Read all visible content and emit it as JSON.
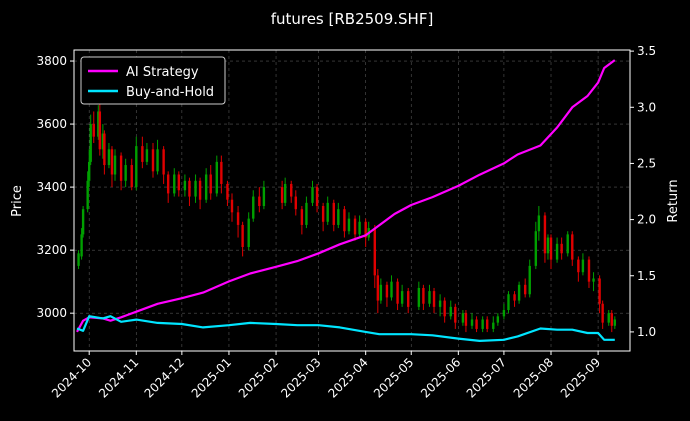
{
  "chart_data": {
    "type": "line",
    "title": "futures [RB2509.SHF]",
    "ylabel": "Price",
    "y2label": "Return",
    "grid": true,
    "legend_position": "top-left",
    "xlim": [
      "2024-09-21",
      "2025-09-22"
    ],
    "ylim": [
      2880,
      3835
    ],
    "y2lim": [
      0.83,
      3.51
    ],
    "x_ticks": [
      "2024-10",
      "2024-11",
      "2024-12",
      "2025-01",
      "2025-02",
      "2025-03",
      "2025-04",
      "2025-05",
      "2025-06",
      "2025-07",
      "2025-08",
      "2025-09"
    ],
    "y_ticks": [
      3000,
      3200,
      3400,
      3600,
      3800
    ],
    "y2_ticks": [
      1.0,
      1.5,
      2.0,
      2.5,
      3.0,
      3.5
    ],
    "y2_tick_labels": [
      "1.0",
      "1.5",
      "2.0",
      "2.5",
      "3.0",
      "3.5"
    ],
    "colors": {
      "ai": "#ff00ff",
      "bh": "#00e5ff",
      "up": "#00a000",
      "down": "#e00000",
      "grid": "#555555"
    },
    "series": [
      {
        "name": "AI Strategy",
        "axis": "right",
        "points": [
          [
            "2024-09-23",
            1.0
          ],
          [
            "2024-09-27",
            1.1
          ],
          [
            "2024-10-01",
            1.13
          ],
          [
            "2024-10-10",
            1.12
          ],
          [
            "2024-10-15",
            1.1
          ],
          [
            "2024-10-22",
            1.13
          ],
          [
            "2024-11-01",
            1.18
          ],
          [
            "2024-11-15",
            1.25
          ],
          [
            "2024-12-01",
            1.3
          ],
          [
            "2024-12-15",
            1.35
          ],
          [
            "2025-01-01",
            1.45
          ],
          [
            "2025-01-15",
            1.52
          ],
          [
            "2025-02-01",
            1.58
          ],
          [
            "2025-02-15",
            1.63
          ],
          [
            "2025-03-01",
            1.7
          ],
          [
            "2025-03-15",
            1.78
          ],
          [
            "2025-04-01",
            1.86
          ],
          [
            "2025-04-10",
            1.95
          ],
          [
            "2025-04-20",
            2.05
          ],
          [
            "2025-05-01",
            2.13
          ],
          [
            "2025-05-15",
            2.2
          ],
          [
            "2025-06-01",
            2.3
          ],
          [
            "2025-06-15",
            2.4
          ],
          [
            "2025-07-01",
            2.5
          ],
          [
            "2025-07-10",
            2.58
          ],
          [
            "2025-07-25",
            2.66
          ],
          [
            "2025-08-05",
            2.82
          ],
          [
            "2025-08-15",
            3.0
          ],
          [
            "2025-08-25",
            3.1
          ],
          [
            "2025-09-01",
            3.22
          ],
          [
            "2025-09-05",
            3.35
          ],
          [
            "2025-09-12",
            3.42
          ]
        ]
      },
      {
        "name": "Buy-and-Hold",
        "axis": "right",
        "points": [
          [
            "2024-09-23",
            1.03
          ],
          [
            "2024-09-27",
            1.01
          ],
          [
            "2024-10-01",
            1.14
          ],
          [
            "2024-10-10",
            1.12
          ],
          [
            "2024-10-15",
            1.14
          ],
          [
            "2024-10-22",
            1.09
          ],
          [
            "2024-11-01",
            1.11
          ],
          [
            "2024-11-15",
            1.08
          ],
          [
            "2024-12-01",
            1.07
          ],
          [
            "2024-12-15",
            1.04
          ],
          [
            "2025-01-01",
            1.06
          ],
          [
            "2025-01-15",
            1.08
          ],
          [
            "2025-02-01",
            1.07
          ],
          [
            "2025-02-15",
            1.06
          ],
          [
            "2025-03-01",
            1.06
          ],
          [
            "2025-03-15",
            1.04
          ],
          [
            "2025-04-01",
            1.0
          ],
          [
            "2025-04-10",
            0.98
          ],
          [
            "2025-04-20",
            0.98
          ],
          [
            "2025-05-01",
            0.98
          ],
          [
            "2025-05-15",
            0.97
          ],
          [
            "2025-06-01",
            0.94
          ],
          [
            "2025-06-15",
            0.92
          ],
          [
            "2025-07-01",
            0.93
          ],
          [
            "2025-07-10",
            0.96
          ],
          [
            "2025-07-25",
            1.03
          ],
          [
            "2025-08-05",
            1.02
          ],
          [
            "2025-08-15",
            1.02
          ],
          [
            "2025-08-25",
            0.99
          ],
          [
            "2025-09-01",
            0.99
          ],
          [
            "2025-09-05",
            0.93
          ],
          [
            "2025-09-12",
            0.93
          ]
        ]
      }
    ],
    "candles": [
      [
        "2024-09-24",
        3150,
        3190,
        3140,
        3200
      ],
      [
        "2024-09-26",
        3180,
        3250,
        3170,
        3270
      ],
      [
        "2024-09-27",
        3250,
        3330,
        3240,
        3340
      ],
      [
        "2024-09-30",
        3330,
        3420,
        3320,
        3450
      ],
      [
        "2024-10-01",
        3420,
        3480,
        3400,
        3520
      ],
      [
        "2024-10-02",
        3480,
        3600,
        3470,
        3630
      ],
      [
        "2024-10-04",
        3600,
        3560,
        3540,
        3640
      ],
      [
        "2024-10-07",
        3560,
        3640,
        3550,
        3660
      ],
      [
        "2024-10-08",
        3640,
        3520,
        3500,
        3680
      ],
      [
        "2024-10-10",
        3520,
        3570,
        3490,
        3600
      ],
      [
        "2024-10-11",
        3570,
        3470,
        3440,
        3580
      ],
      [
        "2024-10-14",
        3470,
        3520,
        3460,
        3540
      ],
      [
        "2024-10-16",
        3520,
        3440,
        3400,
        3530
      ],
      [
        "2024-10-18",
        3440,
        3500,
        3420,
        3520
      ],
      [
        "2024-10-22",
        3500,
        3420,
        3390,
        3510
      ],
      [
        "2024-10-25",
        3420,
        3470,
        3400,
        3490
      ],
      [
        "2024-10-29",
        3470,
        3400,
        3390,
        3490
      ],
      [
        "2024-11-01",
        3400,
        3530,
        3390,
        3560
      ],
      [
        "2024-11-05",
        3530,
        3480,
        3460,
        3560
      ],
      [
        "2024-11-08",
        3480,
        3520,
        3470,
        3540
      ],
      [
        "2024-11-12",
        3520,
        3450,
        3430,
        3540
      ],
      [
        "2024-11-15",
        3450,
        3520,
        3440,
        3550
      ],
      [
        "2024-11-19",
        3520,
        3440,
        3410,
        3530
      ],
      [
        "2024-11-22",
        3440,
        3380,
        3350,
        3450
      ],
      [
        "2024-11-26",
        3380,
        3440,
        3370,
        3460
      ],
      [
        "2024-11-29",
        3440,
        3390,
        3370,
        3450
      ],
      [
        "2024-12-03",
        3390,
        3420,
        3370,
        3440
      ],
      [
        "2024-12-06",
        3420,
        3370,
        3340,
        3430
      ],
      [
        "2024-12-10",
        3370,
        3420,
        3350,
        3440
      ],
      [
        "2024-12-13",
        3420,
        3360,
        3330,
        3430
      ],
      [
        "2024-12-17",
        3360,
        3440,
        3350,
        3460
      ],
      [
        "2024-12-20",
        3440,
        3380,
        3360,
        3470
      ],
      [
        "2024-12-24",
        3380,
        3480,
        3370,
        3500
      ],
      [
        "2024-12-27",
        3480,
        3410,
        3380,
        3500
      ],
      [
        "2024-12-31",
        3410,
        3360,
        3340,
        3420
      ],
      [
        "2025-01-03",
        3360,
        3320,
        3290,
        3380
      ],
      [
        "2025-01-07",
        3320,
        3280,
        3240,
        3340
      ],
      [
        "2025-01-10",
        3280,
        3210,
        3180,
        3290
      ],
      [
        "2025-01-14",
        3210,
        3300,
        3200,
        3320
      ],
      [
        "2025-01-17",
        3300,
        3370,
        3290,
        3390
      ],
      [
        "2025-01-21",
        3370,
        3340,
        3320,
        3400
      ],
      [
        "2025-01-24",
        3340,
        3400,
        3330,
        3420
      ],
      [
        "2025-02-05",
        3400,
        3350,
        3330,
        3420
      ],
      [
        "2025-02-07",
        3350,
        3410,
        3340,
        3430
      ],
      [
        "2025-02-11",
        3410,
        3370,
        3350,
        3420
      ],
      [
        "2025-02-14",
        3370,
        3330,
        3310,
        3390
      ],
      [
        "2025-02-18",
        3330,
        3280,
        3250,
        3340
      ],
      [
        "2025-02-21",
        3280,
        3350,
        3270,
        3370
      ],
      [
        "2025-02-25",
        3350,
        3400,
        3340,
        3420
      ],
      [
        "2025-02-28",
        3400,
        3340,
        3320,
        3410
      ],
      [
        "2025-03-04",
        3340,
        3290,
        3260,
        3350
      ],
      [
        "2025-03-07",
        3290,
        3350,
        3280,
        3370
      ],
      [
        "2025-03-11",
        3350,
        3280,
        3260,
        3360
      ],
      [
        "2025-03-14",
        3280,
        3330,
        3270,
        3350
      ],
      [
        "2025-03-18",
        3330,
        3260,
        3240,
        3340
      ],
      [
        "2025-03-21",
        3260,
        3300,
        3250,
        3320
      ],
      [
        "2025-03-25",
        3300,
        3250,
        3230,
        3310
      ],
      [
        "2025-03-28",
        3250,
        3290,
        3240,
        3310
      ],
      [
        "2025-04-01",
        3290,
        3240,
        3210,
        3300
      ],
      [
        "2025-04-03",
        3240,
        3270,
        3230,
        3290
      ],
      [
        "2025-04-07",
        3270,
        3120,
        3080,
        3280
      ],
      [
        "2025-04-09",
        3120,
        3040,
        3000,
        3140
      ],
      [
        "2025-04-11",
        3040,
        3090,
        3030,
        3110
      ],
      [
        "2025-04-15",
        3090,
        3050,
        3020,
        3100
      ],
      [
        "2025-04-18",
        3050,
        3100,
        3040,
        3120
      ],
      [
        "2025-04-22",
        3100,
        3030,
        3010,
        3110
      ],
      [
        "2025-04-25",
        3030,
        3070,
        3020,
        3090
      ],
      [
        "2025-04-29",
        3070,
        3020,
        3000,
        3080
      ],
      [
        "2025-05-06",
        3020,
        3080,
        3010,
        3100
      ],
      [
        "2025-05-09",
        3080,
        3030,
        3010,
        3090
      ],
      [
        "2025-05-13",
        3030,
        3070,
        3020,
        3090
      ],
      [
        "2025-05-16",
        3070,
        3020,
        3000,
        3080
      ],
      [
        "2025-05-20",
        3020,
        3040,
        2990,
        3060
      ],
      [
        "2025-05-23",
        3040,
        2990,
        2970,
        3050
      ],
      [
        "2025-05-27",
        2990,
        3020,
        2980,
        3040
      ],
      [
        "2025-05-30",
        3020,
        2970,
        2950,
        3030
      ],
      [
        "2025-06-04",
        2970,
        3000,
        2960,
        3010
      ],
      [
        "2025-06-06",
        3000,
        2960,
        2940,
        3010
      ],
      [
        "2025-06-10",
        2960,
        2980,
        2950,
        3000
      ],
      [
        "2025-06-13",
        2980,
        2950,
        2940,
        2990
      ],
      [
        "2025-06-17",
        2950,
        2980,
        2940,
        2990
      ],
      [
        "2025-06-20",
        2980,
        2950,
        2940,
        2990
      ],
      [
        "2025-06-24",
        2950,
        2970,
        2940,
        2990
      ],
      [
        "2025-06-27",
        2970,
        2990,
        2960,
        3000
      ],
      [
        "2025-07-01",
        2990,
        3010,
        2980,
        3030
      ],
      [
        "2025-07-04",
        3010,
        3060,
        3000,
        3070
      ],
      [
        "2025-07-08",
        3060,
        3040,
        3020,
        3070
      ],
      [
        "2025-07-11",
        3040,
        3090,
        3030,
        3100
      ],
      [
        "2025-07-15",
        3090,
        3060,
        3050,
        3110
      ],
      [
        "2025-07-18",
        3060,
        3150,
        3050,
        3170
      ],
      [
        "2025-07-22",
        3150,
        3260,
        3140,
        3290
      ],
      [
        "2025-07-24",
        3260,
        3310,
        3230,
        3340
      ],
      [
        "2025-07-28",
        3310,
        3190,
        3160,
        3320
      ],
      [
        "2025-07-30",
        3190,
        3240,
        3170,
        3250
      ],
      [
        "2025-08-01",
        3240,
        3170,
        3140,
        3250
      ],
      [
        "2025-08-05",
        3170,
        3220,
        3160,
        3240
      ],
      [
        "2025-08-08",
        3220,
        3190,
        3170,
        3240
      ],
      [
        "2025-08-12",
        3190,
        3250,
        3180,
        3260
      ],
      [
        "2025-08-15",
        3250,
        3170,
        3150,
        3260
      ],
      [
        "2025-08-19",
        3170,
        3130,
        3100,
        3180
      ],
      [
        "2025-08-22",
        3130,
        3170,
        3120,
        3190
      ],
      [
        "2025-08-26",
        3170,
        3100,
        3080,
        3180
      ],
      [
        "2025-08-29",
        3100,
        3110,
        3070,
        3130
      ],
      [
        "2025-09-02",
        3110,
        3030,
        3000,
        3120
      ],
      [
        "2025-09-04",
        3030,
        2970,
        2950,
        3040
      ],
      [
        "2025-09-08",
        2970,
        3000,
        2960,
        3010
      ],
      [
        "2025-09-10",
        3000,
        2960,
        2940,
        3010
      ],
      [
        "2025-09-12",
        2960,
        2980,
        2950,
        2990
      ]
    ]
  }
}
